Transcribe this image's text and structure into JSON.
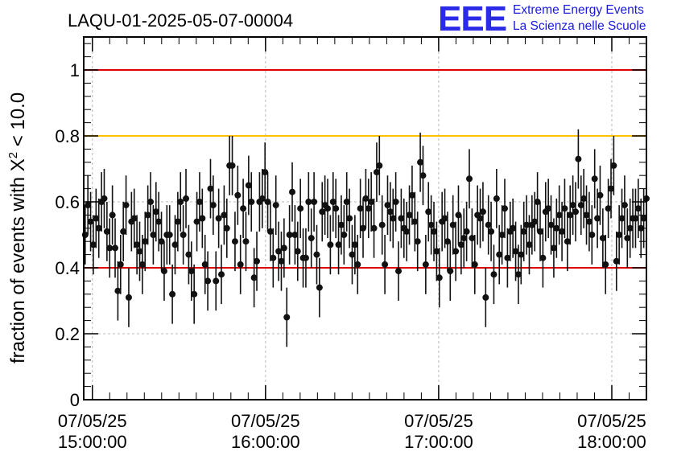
{
  "title": "LAQU-01-2025-05-07-00004",
  "logo": {
    "mark": "EEE",
    "line1": "Extreme Energy Events",
    "line2": "La Scienza nelle Scuole"
  },
  "chart_data": {
    "type": "scatter",
    "title": "LAQU-01-2025-05-07-00004",
    "ylabel_prefix": "fraction of events with X",
    "ylabel_sup": "2",
    "ylabel_suffix": " < 10.0",
    "xlabel": "",
    "x_range": [
      "07/05/25 14:57:00",
      "18:12:00"
    ],
    "ylim": [
      0,
      1.1
    ],
    "y_ticks": [
      {
        "value": 0,
        "label": "0"
      },
      {
        "value": 0.2,
        "label": "0.2"
      },
      {
        "value": 0.4,
        "label": "0.4"
      },
      {
        "value": 0.6,
        "label": "0.6"
      },
      {
        "value": 0.8,
        "label": "0.8"
      },
      {
        "value": 1,
        "label": "1"
      }
    ],
    "x_ticks": [
      {
        "minutes": 0,
        "date": "07/05/25",
        "time": "15:00:00"
      },
      {
        "minutes": 60,
        "date": "07/05/25",
        "time": "16:00:00"
      },
      {
        "minutes": 120,
        "date": "07/05/25",
        "time": "17:00:00"
      },
      {
        "minutes": 180,
        "date": "07/05/25",
        "time": "18:00:00"
      }
    ],
    "x_min_minutes": -3,
    "x_max_minutes": 192,
    "grid": true,
    "reference_lines": [
      {
        "y": 1.0,
        "color": "#e00000"
      },
      {
        "y": 0.8,
        "color": "#ffc000"
      },
      {
        "y": 0.4,
        "color": "#e00000"
      }
    ],
    "point_color": "#111111",
    "error_bar": 0.09,
    "points_minutes": [
      -2.5,
      192
    ],
    "values": [
      0.5,
      0.59,
      0.54,
      0.47,
      0.55,
      0.52,
      0.6,
      0.61,
      0.51,
      0.46,
      0.56,
      0.46,
      0.33,
      0.41,
      0.51,
      0.59,
      0.31,
      0.54,
      0.55,
      0.47,
      0.45,
      0.41,
      0.48,
      0.56,
      0.6,
      0.5,
      0.57,
      0.54,
      0.48,
      0.39,
      0.5,
      0.5,
      0.32,
      0.47,
      0.54,
      0.6,
      0.5,
      0.61,
      0.44,
      0.39,
      0.32,
      0.54,
      0.6,
      0.55,
      0.41,
      0.36,
      0.64,
      0.59,
      0.36,
      0.55,
      0.38,
      0.56,
      0.52,
      0.71,
      0.71,
      0.48,
      0.62,
      0.41,
      0.58,
      0.48,
      0.65,
      0.6,
      0.37,
      0.42,
      0.6,
      0.61,
      0.69,
      0.6,
      0.51,
      0.43,
      0.59,
      0.45,
      0.42,
      0.46,
      0.25,
      0.5,
      0.63,
      0.5,
      0.45,
      0.58,
      0.43,
      0.43,
      0.6,
      0.49,
      0.6,
      0.44,
      0.34,
      0.57,
      0.59,
      0.58,
      0.47,
      0.6,
      0.58,
      0.47,
      0.53,
      0.5,
      0.6,
      0.55,
      0.44,
      0.47,
      0.41,
      0.58,
      0.52,
      0.61,
      0.58,
      0.6,
      0.52,
      0.69,
      0.71,
      0.53,
      0.41,
      0.59,
      0.57,
      0.55,
      0.6,
      0.39,
      0.55,
      0.52,
      0.51,
      0.56,
      0.62,
      0.54,
      0.48,
      0.72,
      0.68,
      0.41,
      0.57,
      0.53,
      0.51,
      0.45,
      0.37,
      0.54,
      0.55,
      0.48,
      0.39,
      0.53,
      0.45,
      0.56,
      0.47,
      0.49,
      0.51,
      0.67,
      0.49,
      0.41,
      0.56,
      0.55,
      0.57,
      0.31,
      0.53,
      0.51,
      0.38,
      0.61,
      0.44,
      0.5,
      0.58,
      0.43,
      0.51,
      0.52,
      0.45,
      0.38,
      0.44,
      0.51,
      0.53,
      0.47,
      0.53,
      0.54,
      0.6,
      0.51,
      0.43,
      0.57,
      0.58,
      0.53,
      0.46,
      0.52,
      0.56,
      0.51,
      0.58,
      0.48,
      0.56,
      0.59,
      0.57,
      0.73,
      0.59,
      0.61,
      0.56,
      0.54,
      0.5,
      0.67,
      0.55,
      0.62,
      0.49,
      0.41,
      0.58,
      0.64,
      0.71,
      0.42,
      0.5,
      0.55,
      0.59,
      0.49,
      0.52,
      0.55,
      0.55,
      0.58,
      0.52,
      0.55,
      0.61
    ]
  }
}
